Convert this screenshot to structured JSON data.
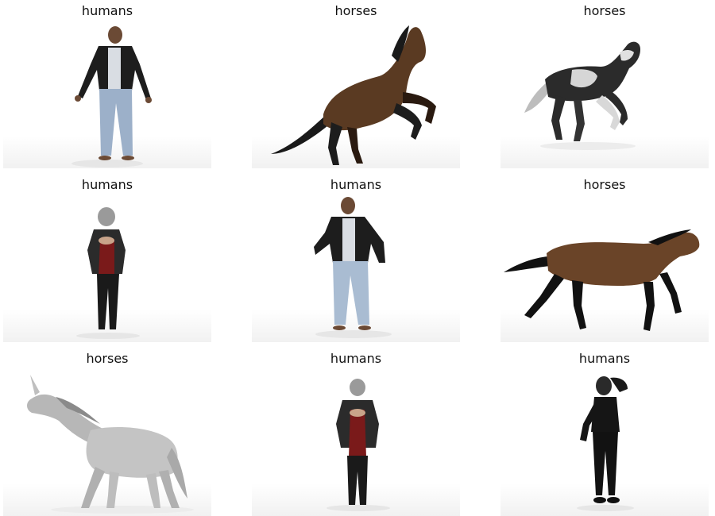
{
  "panels": [
    {
      "title": "humans",
      "subject": "man-standing-jacket"
    },
    {
      "title": "horses",
      "subject": "horse-rearing-bay"
    },
    {
      "title": "horses",
      "subject": "horse-galloping-pinto"
    },
    {
      "title": "humans",
      "subject": "woman-standing-hands-together"
    },
    {
      "title": "humans",
      "subject": "man-standing-jacket-2"
    },
    {
      "title": "horses",
      "subject": "horse-trotting-bay"
    },
    {
      "title": "horses",
      "subject": "unicorn-white"
    },
    {
      "title": "humans",
      "subject": "woman-walking-jacket"
    },
    {
      "title": "humans",
      "subject": "woman-black-outfit"
    }
  ]
}
